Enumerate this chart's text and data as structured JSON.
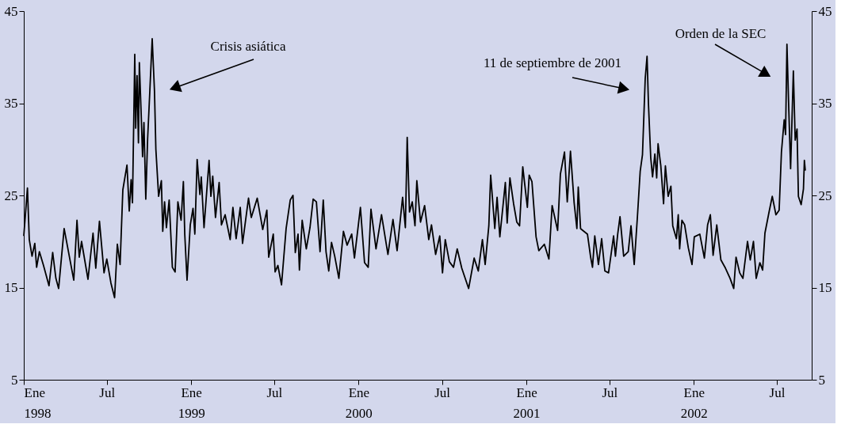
{
  "chart_data": {
    "type": "line",
    "x": [
      "1998-01-01",
      "1998-01-09",
      "1998-01-13",
      "1998-01-19",
      "1998-01-25",
      "1998-01-29",
      "1998-02-04",
      "1998-02-13",
      "1998-02-25",
      "1998-03-05",
      "1998-03-12",
      "1998-03-18",
      "1998-03-30",
      "1998-04-08",
      "1998-04-20",
      "1998-04-27",
      "1998-05-02",
      "1998-05-07",
      "1998-05-21",
      "1998-06-01",
      "1998-06-07",
      "1998-06-15",
      "1998-06-25",
      "1998-07-01",
      "1998-07-10",
      "1998-07-18",
      "1998-07-24",
      "1998-07-30",
      "1998-08-05",
      "1998-08-14",
      "1998-08-19",
      "1998-08-23",
      "1998-08-26",
      "1998-08-31",
      "1998-09-02",
      "1998-09-05",
      "1998-09-08",
      "1998-09-10",
      "1998-09-14",
      "1998-09-17",
      "1998-09-20",
      "1998-09-24",
      "1998-09-28",
      "1998-10-03",
      "1998-10-08",
      "1998-10-13",
      "1998-10-16",
      "1998-10-22",
      "1998-10-28",
      "1998-10-31",
      "1998-11-04",
      "1998-11-08",
      "1998-11-14",
      "1998-11-21",
      "1998-11-27",
      "1998-12-03",
      "1998-12-10",
      "1998-12-15",
      "1998-12-18",
      "1998-12-23",
      "1998-12-30",
      "1999-01-05",
      "1999-01-09",
      "1999-01-14",
      "1999-01-20",
      "1999-01-23",
      "1999-01-29",
      "1999-02-09",
      "1999-02-13",
      "1999-02-17",
      "1999-02-23",
      "1999-03-03",
      "1999-03-08",
      "1999-03-16",
      "1999-03-27",
      "1999-04-02",
      "1999-04-09",
      "1999-04-18",
      "1999-04-23",
      "1999-05-06",
      "1999-05-12",
      "1999-05-25",
      "1999-06-06",
      "1999-06-15",
      "1999-06-19",
      "1999-06-29",
      "1999-07-03",
      "1999-07-09",
      "1999-07-17",
      "1999-07-27",
      "1999-08-05",
      "1999-08-11",
      "1999-08-16",
      "1999-08-22",
      "1999-08-25",
      "1999-08-31",
      "1999-09-09",
      "1999-09-17",
      "1999-09-24",
      "1999-10-01",
      "1999-10-09",
      "1999-10-16",
      "1999-10-22",
      "1999-10-28",
      "1999-11-03",
      "1999-11-10",
      "1999-11-19",
      "1999-11-29",
      "1999-12-07",
      "1999-12-17",
      "1999-12-23",
      "2000-01-05",
      "2000-01-14",
      "2000-01-22",
      "2000-01-28",
      "2000-02-08",
      "2000-02-20",
      "2000-03-05",
      "2000-03-16",
      "2000-03-25",
      "2000-04-06",
      "2000-04-12",
      "2000-04-16",
      "2000-04-21",
      "2000-04-27",
      "2000-05-03",
      "2000-05-07",
      "2000-05-15",
      "2000-05-24",
      "2000-06-02",
      "2000-06-08",
      "2000-06-17",
      "2000-06-26",
      "2000-07-02",
      "2000-07-08",
      "2000-07-17",
      "2000-07-26",
      "2000-08-03",
      "2000-08-13",
      "2000-08-28",
      "2000-09-09",
      "2000-09-18",
      "2000-09-27",
      "2000-10-03",
      "2000-10-11",
      "2000-10-15",
      "2000-10-24",
      "2000-10-29",
      "2000-11-04",
      "2000-11-16",
      "2000-11-20",
      "2000-11-26",
      "2000-12-04",
      "2000-12-11",
      "2000-12-17",
      "2000-12-24",
      "2001-01-03",
      "2001-01-07",
      "2001-01-13",
      "2001-01-22",
      "2001-01-28",
      "2001-02-09",
      "2001-02-19",
      "2001-02-26",
      "2001-03-10",
      "2001-03-16",
      "2001-03-25",
      "2001-03-31",
      "2001-04-07",
      "2001-04-15",
      "2001-04-21",
      "2001-04-24",
      "2001-04-29",
      "2001-05-14",
      "2001-05-21",
      "2001-05-25",
      "2001-05-30",
      "2001-06-07",
      "2001-06-14",
      "2001-06-21",
      "2001-06-29",
      "2001-07-10",
      "2001-07-14",
      "2001-07-19",
      "2001-07-24",
      "2001-08-01",
      "2001-08-11",
      "2001-08-17",
      "2001-08-24",
      "2001-08-31",
      "2001-09-06",
      "2001-09-11",
      "2001-09-17",
      "2001-09-21",
      "2001-09-24",
      "2001-09-29",
      "2001-10-03",
      "2001-10-08",
      "2001-10-12",
      "2001-10-15",
      "2001-10-21",
      "2001-10-27",
      "2001-10-31",
      "2001-11-06",
      "2001-11-12",
      "2001-11-16",
      "2001-11-24",
      "2001-11-28",
      "2001-12-01",
      "2001-12-06",
      "2001-12-12",
      "2001-12-20",
      "2001-12-28",
      "2002-01-02",
      "2002-01-14",
      "2002-01-24",
      "2002-01-31",
      "2002-02-06",
      "2002-02-12",
      "2002-02-20",
      "2002-03-01",
      "2002-03-11",
      "2002-03-21",
      "2002-03-29",
      "2002-04-03",
      "2002-04-11",
      "2002-04-18",
      "2002-04-28",
      "2002-05-04",
      "2002-05-11",
      "2002-05-17",
      "2002-05-25",
      "2002-05-31",
      "2002-06-05",
      "2002-06-14",
      "2002-06-21",
      "2002-06-29",
      "2002-07-06",
      "2002-07-11",
      "2002-07-17",
      "2002-07-20",
      "2002-07-23",
      "2002-07-27",
      "2002-07-31",
      "2002-08-06",
      "2002-08-10",
      "2002-08-14",
      "2002-08-17",
      "2002-08-23",
      "2002-08-28",
      "2002-08-30",
      "2002-09-01"
    ],
    "series": [
      {
        "color": "#000000",
        "values": [
          20.6,
          25.8,
          20.2,
          18.4,
          19.8,
          17.2,
          18.9,
          17.4,
          15.2,
          18.8,
          16.0,
          14.9,
          21.4,
          19.0,
          15.8,
          22.3,
          18.3,
          20.0,
          15.9,
          20.9,
          17.1,
          22.2,
          16.6,
          18.1,
          15.5,
          13.9,
          19.7,
          17.5,
          25.6,
          28.3,
          23.3,
          26.7,
          24.2,
          40.3,
          32.3,
          38.0,
          30.7,
          39.4,
          33.8,
          29.2,
          32.9,
          24.6,
          31.1,
          36.5,
          42.0,
          36.3,
          30.0,
          24.9,
          26.6,
          21.1,
          24.3,
          21.5,
          24.5,
          17.2,
          16.7,
          24.3,
          22.3,
          26.5,
          20.8,
          15.8,
          21.8,
          23.6,
          20.8,
          28.9,
          25.1,
          27.0,
          21.5,
          28.8,
          24.9,
          27.1,
          22.6,
          26.4,
          21.8,
          22.9,
          20.2,
          23.7,
          20.3,
          23.7,
          19.8,
          24.7,
          22.6,
          24.7,
          21.3,
          23.4,
          18.3,
          20.8,
          16.7,
          17.4,
          15.3,
          21.4,
          24.5,
          25.0,
          18.8,
          20.8,
          16.9,
          22.3,
          19.2,
          21.5,
          24.6,
          24.3,
          18.9,
          24.5,
          18.9,
          16.8,
          19.9,
          18.4,
          16.0,
          21.1,
          19.6,
          20.8,
          18.2,
          23.7,
          17.7,
          17.2,
          23.5,
          19.2,
          22.9,
          18.6,
          22.4,
          19.0,
          24.8,
          21.5,
          31.3,
          23.2,
          24.3,
          21.7,
          26.6,
          22.1,
          23.9,
          20.2,
          21.8,
          18.6,
          20.6,
          16.6,
          20.2,
          17.8,
          17.2,
          19.2,
          17.1,
          14.9,
          18.2,
          16.8,
          20.2,
          17.5,
          21.7,
          27.2,
          21.4,
          24.8,
          20.5,
          26.4,
          22.0,
          26.9,
          24.1,
          22.1,
          21.7,
          28.1,
          23.7,
          27.2,
          26.5,
          20.5,
          19.0,
          19.7,
          18.1,
          23.9,
          21.2,
          27.3,
          29.7,
          24.3,
          29.8,
          24.2,
          21.4,
          25.9,
          21.4,
          20.8,
          18.3,
          17.2,
          20.6,
          17.5,
          20.3,
          16.8,
          16.6,
          20.6,
          18.4,
          20.8,
          22.7,
          18.4,
          18.9,
          21.7,
          17.5,
          22.7,
          27.6,
          29.4,
          37.7,
          40.1,
          35.0,
          29.1,
          27.0,
          29.5,
          26.9,
          30.6,
          28.2,
          24.1,
          28.2,
          24.9,
          26.0,
          21.7,
          20.3,
          22.9,
          19.2,
          22.3,
          21.8,
          19.3,
          17.5,
          20.5,
          20.8,
          18.2,
          21.8,
          22.9,
          18.5,
          21.8,
          18.0,
          17.1,
          16.0,
          14.9,
          18.3,
          16.6,
          16.0,
          20.0,
          18.0,
          20.0,
          16.0,
          17.7,
          16.9,
          20.9,
          23.2,
          24.9,
          22.9,
          23.4,
          29.7,
          33.2,
          31.6,
          41.4,
          34.4,
          27.9,
          38.5,
          31.0,
          32.2,
          24.9,
          24.0,
          25.7,
          28.8,
          27.7
        ]
      }
    ],
    "xlim": [
      "1998-01-01",
      "2002-09-15"
    ],
    "xticks": [
      {
        "value": "1998-01-01",
        "label": "Ene\n1998"
      },
      {
        "value": "1998-07-01",
        "label": "Jul"
      },
      {
        "value": "1999-01-01",
        "label": "Ene\n1999"
      },
      {
        "value": "1999-07-01",
        "label": "Jul"
      },
      {
        "value": "2000-01-01",
        "label": "Ene\n2000"
      },
      {
        "value": "2000-07-01",
        "label": "Jul"
      },
      {
        "value": "2001-01-01",
        "label": "Ene\n2001"
      },
      {
        "value": "2001-07-01",
        "label": "Jul"
      },
      {
        "value": "2002-01-01",
        "label": "Ene\n2002"
      },
      {
        "value": "2002-07-01",
        "label": "Jul"
      }
    ],
    "ylim": [
      5,
      45
    ],
    "yticks": [
      5,
      15,
      25,
      35,
      45
    ],
    "y2lim": [
      5,
      45
    ],
    "y2ticks": [
      5,
      15,
      25,
      35,
      45
    ],
    "grid": false,
    "legend": false,
    "line_style": "solid",
    "marker": "none",
    "annotations": [
      "Crisis asiática",
      "11 de septiembre de 2001",
      "Orden de la SEC"
    ]
  }
}
